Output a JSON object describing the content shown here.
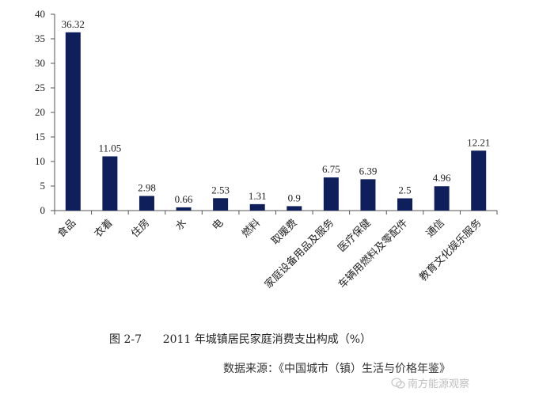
{
  "chart_data": {
    "type": "bar",
    "categories": [
      "食品",
      "衣着",
      "住房",
      "水",
      "电",
      "燃料",
      "取暖费",
      "家庭设备用品及服务",
      "医疗保健",
      "车辆用燃料及零配件",
      "通信",
      "教育文化娱乐服务"
    ],
    "values": [
      36.32,
      11.05,
      2.98,
      0.66,
      2.53,
      1.31,
      0.9,
      6.75,
      6.39,
      2.5,
      4.96,
      12.21
    ],
    "data_labels": [
      "36.32",
      "11.05",
      "2.98",
      "0.66",
      "2.53",
      "1.31",
      "0.9",
      "6.75",
      "6.39",
      "2.5",
      "4.96",
      "12.21"
    ],
    "ylim": [
      0,
      40
    ],
    "yticks": [
      0,
      5,
      10,
      15,
      20,
      25,
      30,
      35,
      40
    ],
    "grid": false,
    "bar_color": "#0e1f5b"
  },
  "caption": "图 2-7      2011 年城镇居民家庭消费支出构成（%）",
  "source": "数据来源：《中国城市（镇）生活与价格年鉴》",
  "watermark": "南方能源观察"
}
